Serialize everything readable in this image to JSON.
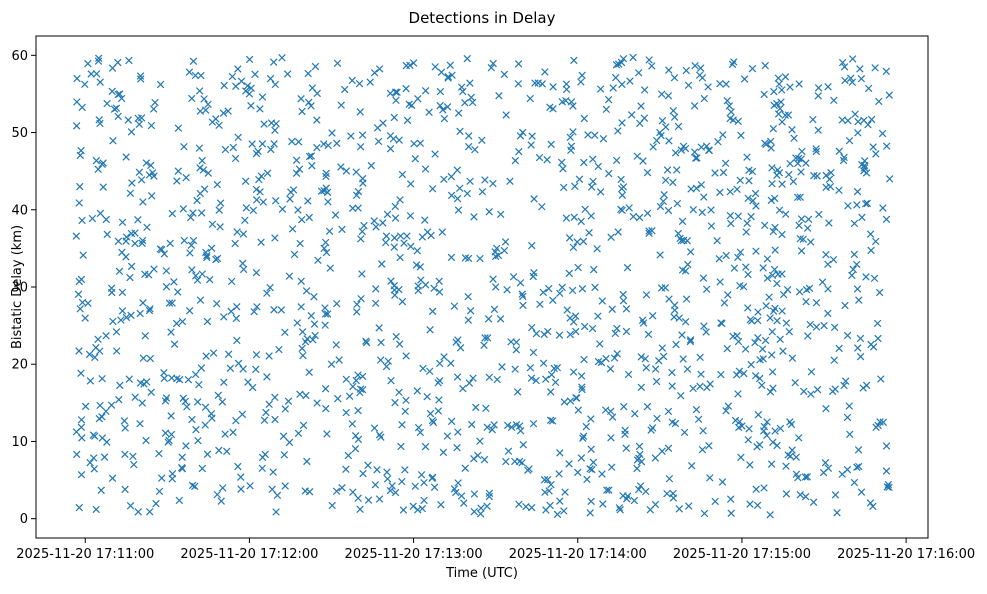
{
  "chart_data": {
    "type": "scatter",
    "title": "Detections in Delay",
    "xlabel": "Time (UTC)",
    "ylabel": "Bistatic Delay (km)",
    "x_tick_labels": [
      "2025-11-20 17:11:00",
      "2025-11-20 17:12:00",
      "2025-11-20 17:13:00",
      "2025-11-20 17:14:00",
      "2025-11-20 17:15:00",
      "2025-11-20 17:16:00"
    ],
    "y_ticks": [
      0,
      10,
      20,
      30,
      40,
      50,
      60
    ],
    "xlim": [
      "2025-11-20 17:10:42",
      "2025-11-20 17:16:08"
    ],
    "ylim": [
      -2.5,
      62.5
    ],
    "grid": false,
    "marker": "x",
    "series": [
      {
        "color": "#1f77b4",
        "count": 1500,
        "x_range": [
          "2025-11-20 17:10:56",
          "2025-11-20 17:15:54"
        ],
        "y_range": [
          0.5,
          59.8
        ],
        "sample_points": [
          {
            "x": "2025-11-20 17:10:57",
            "y": 57.0
          },
          {
            "x": "2025-11-20 17:10:58",
            "y": 43.0
          },
          {
            "x": "2025-11-20 17:10:59",
            "y": 28.0
          },
          {
            "x": "2025-11-20 17:11:04",
            "y": 1.2
          },
          {
            "x": "2025-11-20 17:11:20",
            "y": 12.3
          },
          {
            "x": "2025-11-20 17:11:34",
            "y": 45.0
          },
          {
            "x": "2025-11-20 17:12:00",
            "y": 55.0
          },
          {
            "x": "2025-11-20 17:12:30",
            "y": 20.0
          },
          {
            "x": "2025-11-20 17:13:00",
            "y": 59.0
          },
          {
            "x": "2025-11-20 17:13:30",
            "y": 30.0
          },
          {
            "x": "2025-11-20 17:14:00",
            "y": 6.0
          },
          {
            "x": "2025-11-20 17:14:30",
            "y": 50.0
          },
          {
            "x": "2025-11-20 17:15:00",
            "y": 12.0
          },
          {
            "x": "2025-11-20 17:15:30",
            "y": 25.0
          },
          {
            "x": "2025-11-20 17:15:54",
            "y": 44.0
          }
        ]
      }
    ]
  }
}
